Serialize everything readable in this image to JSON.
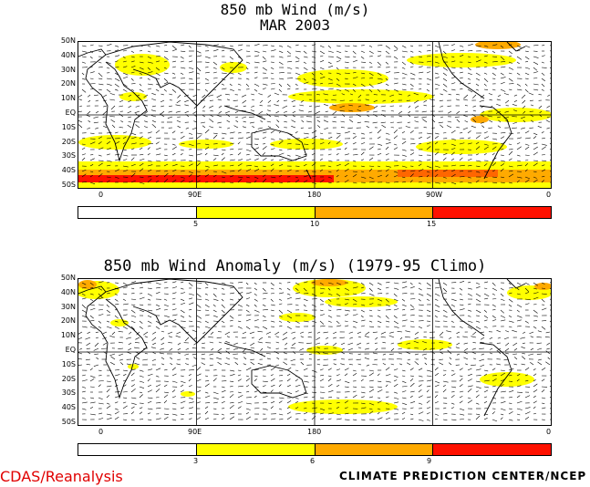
{
  "top_panel": {
    "title_line1": "850 mb Wind (m/s)",
    "title_line2": "MAR 2003",
    "lat_labels": [
      "50N",
      "40N",
      "30N",
      "20N",
      "10N",
      "EQ",
      "10S",
      "20S",
      "30S",
      "40S",
      "50S"
    ],
    "lon_labels": [
      "0",
      "90E",
      "180",
      "90W",
      "0"
    ],
    "colorbar_labels": [
      "5",
      "10",
      "15"
    ],
    "colorbar_colors": [
      "#ffffff",
      "#ffff00",
      "#ffaa00",
      "#ff6600",
      "#ff1100"
    ]
  },
  "bottom_panel": {
    "title": "850 mb Wind Anomaly (m/s) (1979-95 Climo)",
    "lat_labels": [
      "50N",
      "40N",
      "30N",
      "20N",
      "10N",
      "EQ",
      "10S",
      "20S",
      "30S",
      "40S",
      "50S"
    ],
    "lon_labels": [
      "0",
      "90E",
      "180",
      "90W",
      "0"
    ],
    "colorbar_labels": [
      "3",
      "6",
      "9"
    ],
    "colorbar_colors": [
      "#ffffff",
      "#ffff00",
      "#ffaa00",
      "#ff6600",
      "#ff1100"
    ]
  },
  "footer": {
    "left": "CDAS/Reanalysis",
    "right": "CLIMATE PREDICTION CENTER/NCEP"
  }
}
